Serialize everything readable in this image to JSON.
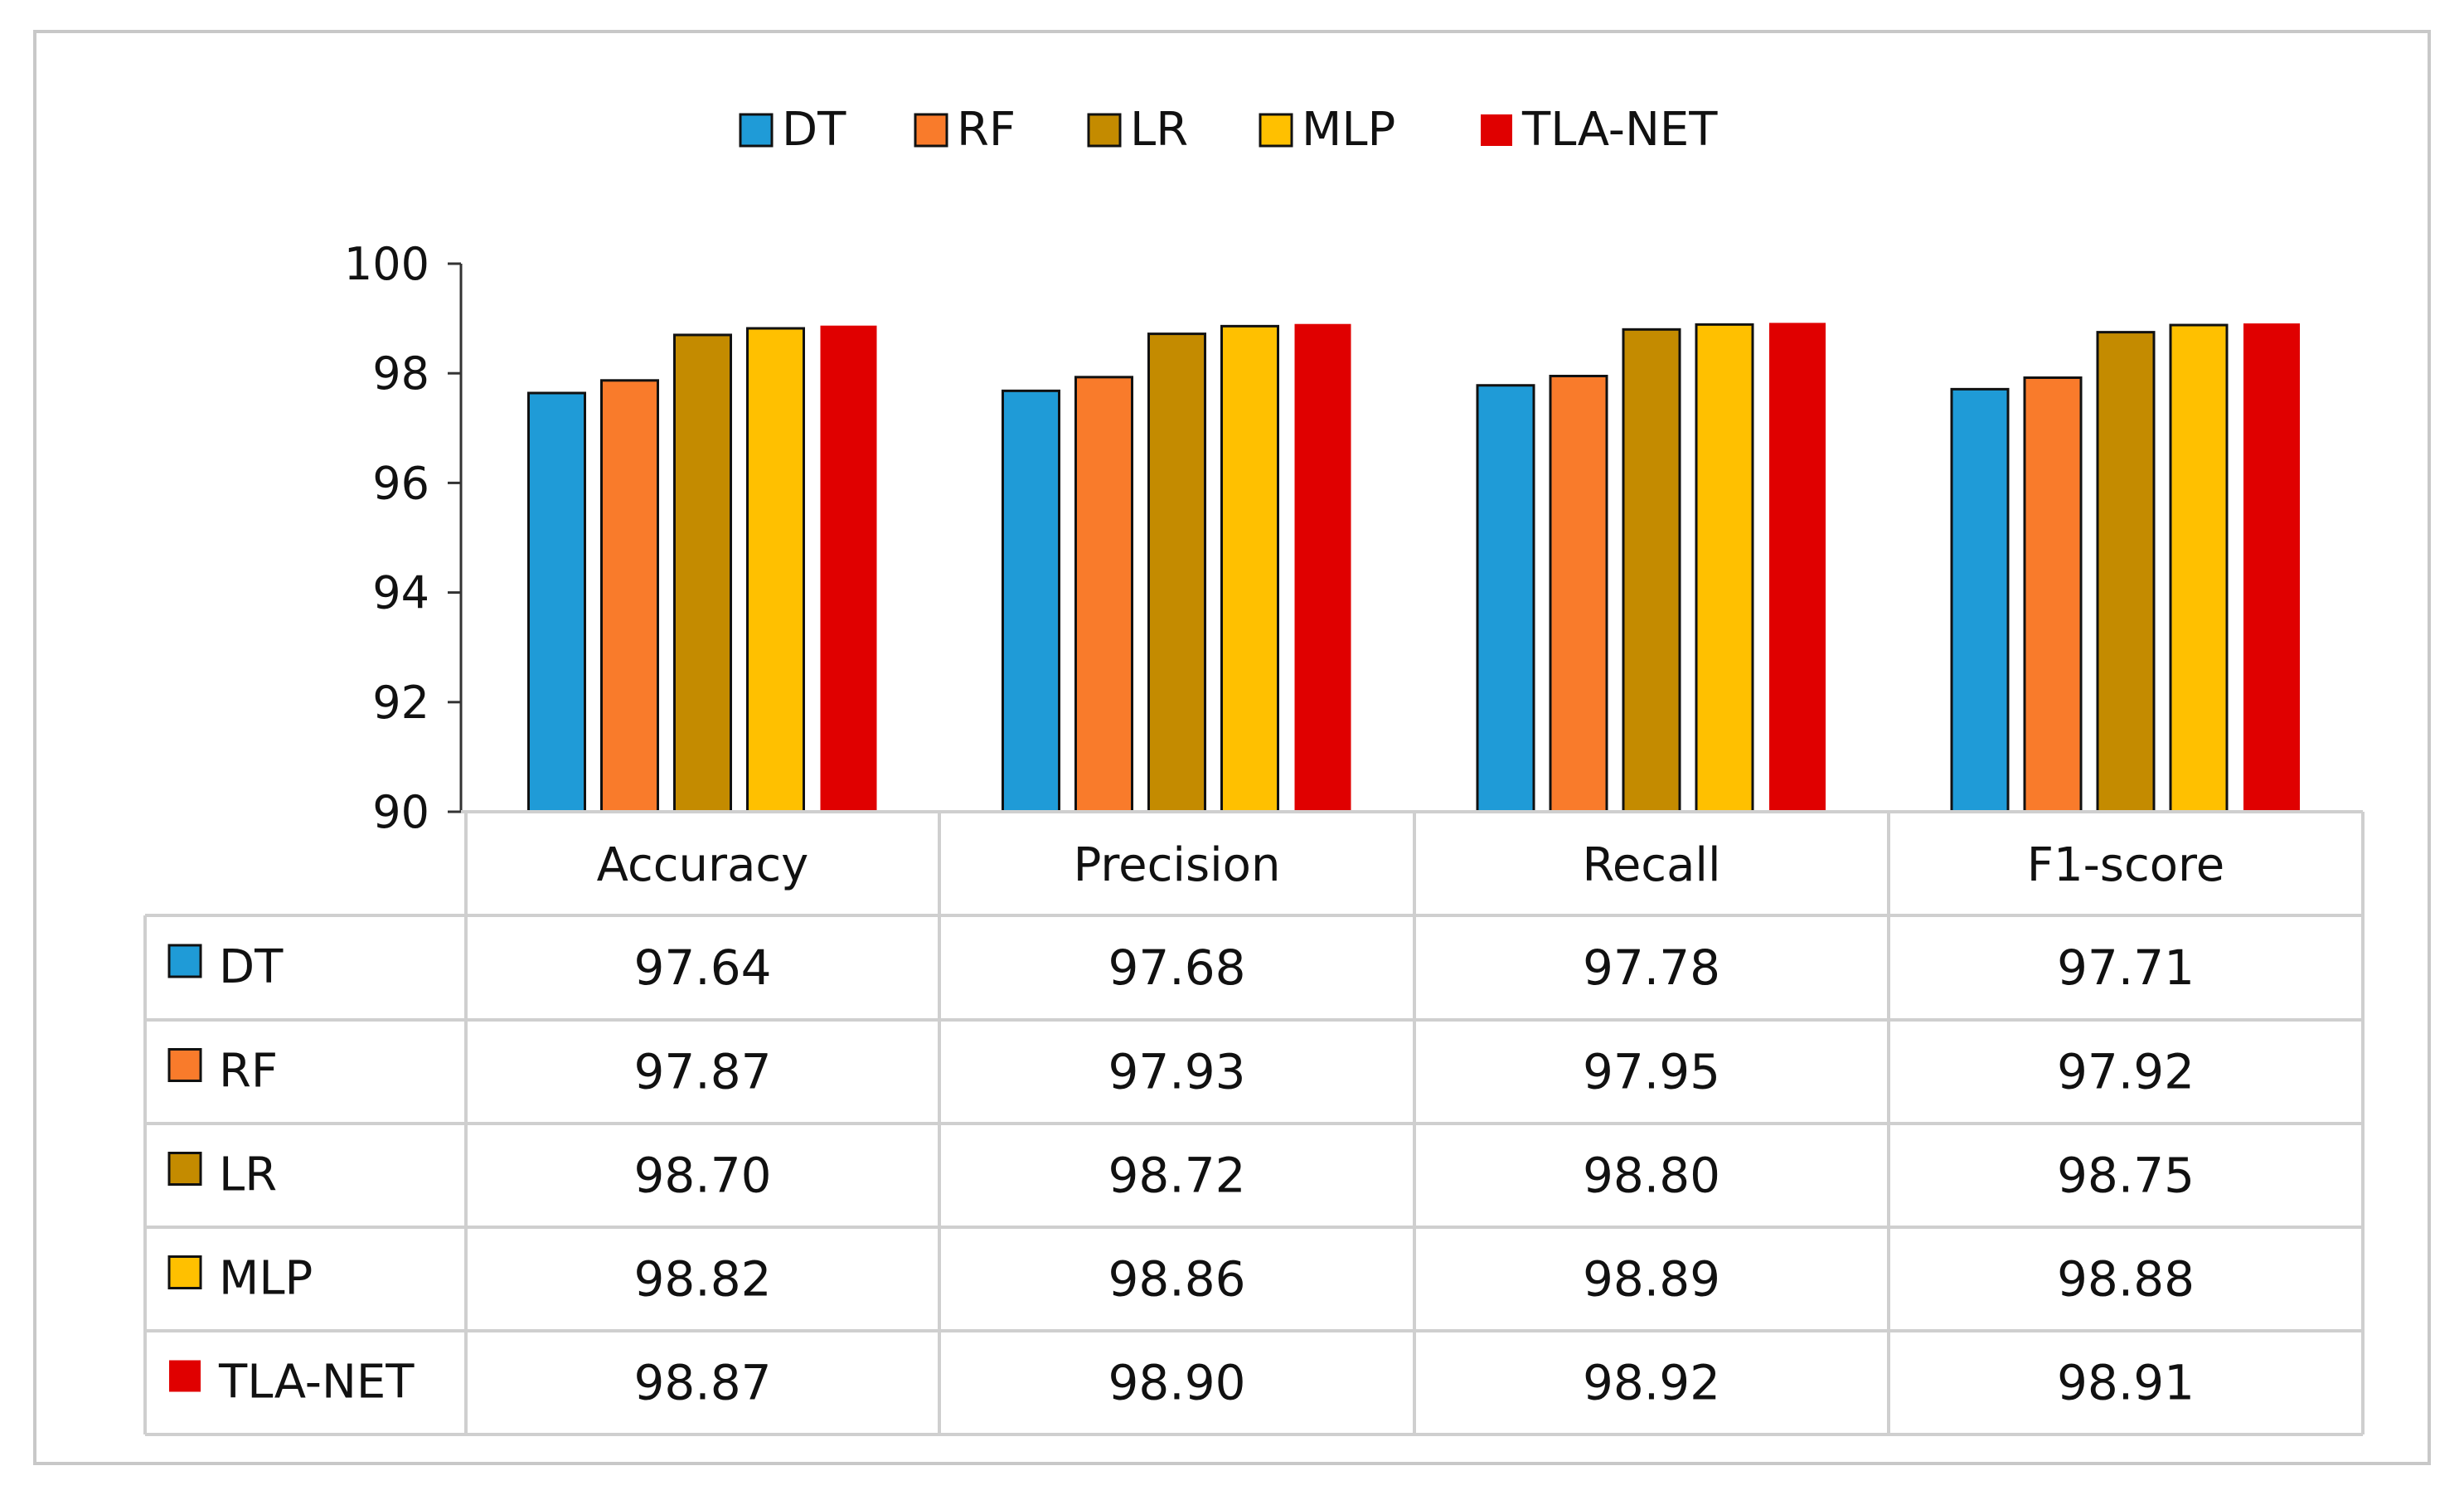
{
  "chart_data": {
    "type": "bar",
    "categories": [
      "Accuracy",
      "Precision",
      "Recall",
      "F1-score"
    ],
    "series": [
      {
        "name": "DT",
        "color": "#1f9bd7",
        "values": [
          97.64,
          97.68,
          97.78,
          97.71
        ]
      },
      {
        "name": "RF",
        "color": "#f97b2b",
        "values": [
          97.87,
          97.93,
          97.95,
          97.92
        ]
      },
      {
        "name": "LR",
        "color": "#c48b00",
        "values": [
          98.7,
          98.72,
          98.8,
          98.75
        ]
      },
      {
        "name": "MLP",
        "color": "#ffc000",
        "values": [
          98.82,
          98.86,
          98.89,
          98.88
        ]
      },
      {
        "name": "TLA-NET",
        "color": "#e00000",
        "values": [
          98.87,
          98.9,
          98.92,
          98.91
        ]
      }
    ],
    "table_values": [
      [
        "97.64",
        "97.68",
        "97.78",
        "97.71"
      ],
      [
        "97.87",
        "97.93",
        "97.95",
        "97.92"
      ],
      [
        "98.70",
        "98.72",
        "98.80",
        "98.75"
      ],
      [
        "98.82",
        "98.86",
        "98.89",
        "98.88"
      ],
      [
        "98.87",
        "98.90",
        "98.92",
        "98.91"
      ]
    ],
    "ylim": [
      90,
      100
    ],
    "yticks": [
      "90",
      "92",
      "94",
      "96",
      "98",
      "100"
    ],
    "legend_position": "top-center",
    "data_table": true,
    "grid": false
  }
}
